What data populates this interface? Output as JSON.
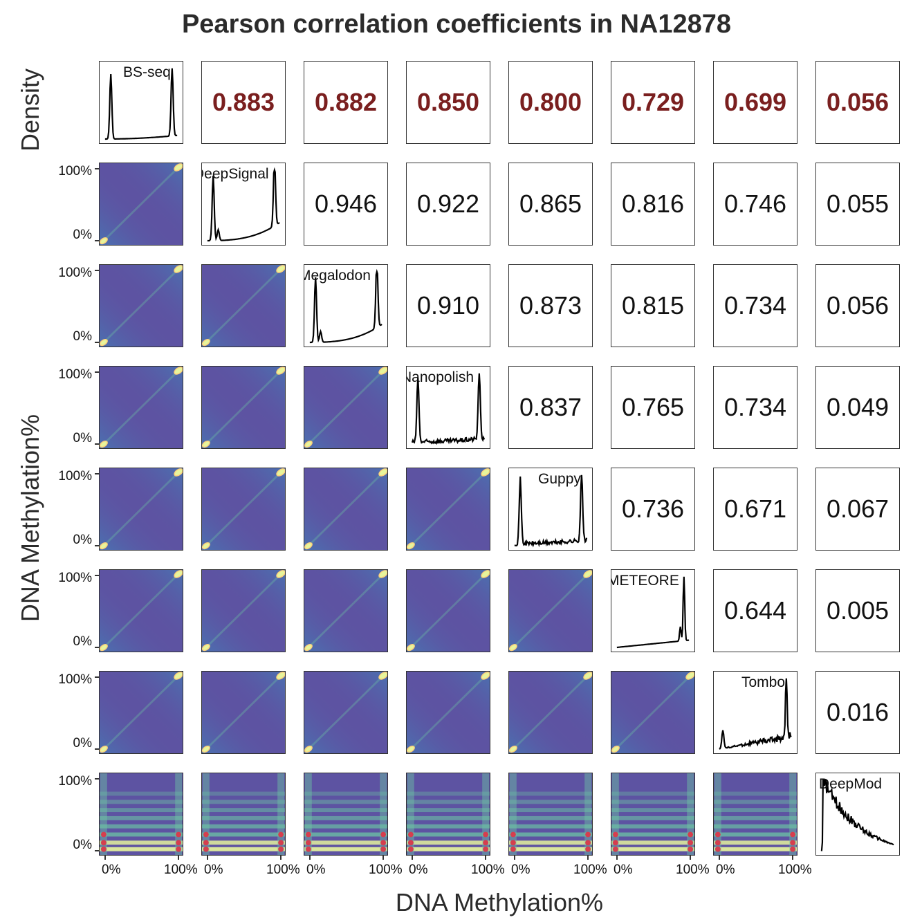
{
  "chart_data": {
    "type": "pair-plot",
    "title": "Pearson correlation coefficients in NA12878",
    "xlabel": "DNA Methylation%",
    "ylabel_density": "Density",
    "ylabel_methylation": "DNA Methylation%",
    "y_tick_labels": [
      "100%",
      "0%"
    ],
    "x_tick_labels": [
      "0%",
      "100%"
    ],
    "tools": [
      "BS-seq",
      "DeepSignal",
      "Megalodon",
      "Nanopolish",
      "Guppy",
      "METEORE",
      "Tombo",
      "DeepMod"
    ],
    "correlations": [
      [
        "",
        "0.883",
        "0.882",
        "0.850",
        "0.800",
        "0.729",
        "0.699",
        "0.056"
      ],
      [
        "",
        "",
        "0.946",
        "0.922",
        "0.865",
        "0.816",
        "0.746",
        "0.055"
      ],
      [
        "",
        "",
        "",
        "0.910",
        "0.873",
        "0.815",
        "0.734",
        "0.056"
      ],
      [
        "",
        "",
        "",
        "",
        "0.837",
        "0.765",
        "0.734",
        "0.049"
      ],
      [
        "",
        "",
        "",
        "",
        "",
        "0.736",
        "0.671",
        "0.067"
      ],
      [
        "",
        "",
        "",
        "",
        "",
        "",
        "0.644",
        "0.005"
      ],
      [
        "",
        "",
        "",
        "",
        "",
        "",
        "",
        "0.016"
      ],
      [
        "",
        "",
        "",
        "",
        "",
        "",
        "",
        ""
      ]
    ],
    "highlight_row": 0,
    "highlight_color": "#7a1f1f",
    "heatmap_colormap": [
      "#5d53a2",
      "#3b8bbd",
      "#6cc4a4",
      "#e7f59c",
      "#fdcf7a",
      "#d53e4f"
    ]
  }
}
